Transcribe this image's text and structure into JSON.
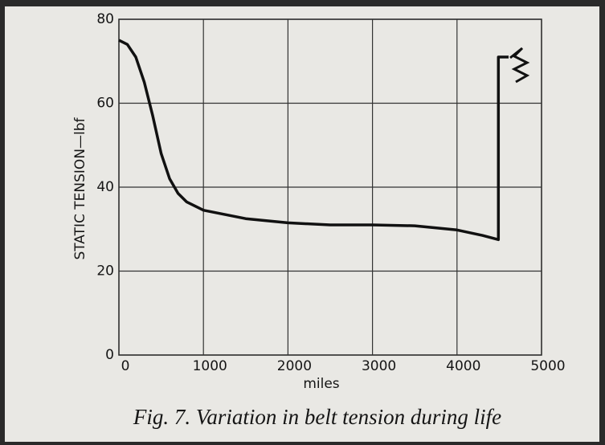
{
  "chart_data": {
    "type": "line",
    "title": "Fig. 7.  Variation in belt tension during life",
    "x_label": "miles",
    "y_label": "STATIC  TENSION—lbf",
    "series": [
      {
        "color": "#111111",
        "x": [
          0,
          100,
          200,
          300,
          400,
          500,
          600,
          700,
          800,
          1000,
          1500,
          2000,
          2500,
          3000,
          3500,
          4000,
          4300,
          4490,
          4490,
          4610
        ],
        "values": [
          75,
          74,
          71,
          65,
          57,
          48,
          42,
          38.5,
          36.5,
          34.5,
          32.5,
          31.5,
          31,
          31,
          30.8,
          29.8,
          28.5,
          27.5,
          71,
          71
        ]
      }
    ],
    "xlim": [
      0,
      5000
    ],
    "xticks": [
      0,
      1000,
      2000,
      3000,
      4000,
      5000
    ],
    "ylim": [
      0,
      80
    ],
    "yticks": [
      0,
      20,
      40,
      60,
      80
    ],
    "grid": true
  }
}
